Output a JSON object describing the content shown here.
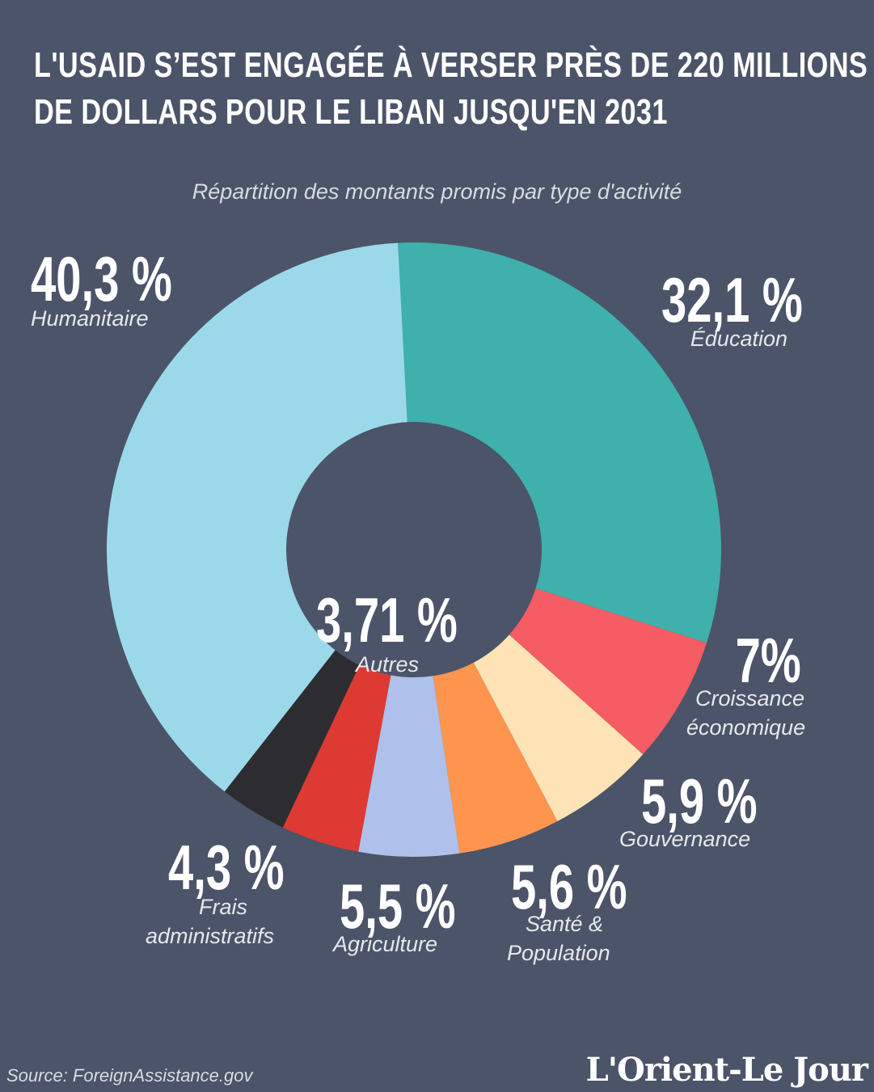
{
  "header": {
    "title_line1": "L'USAID S’EST ENGAGÉE À VERSER PRÈS DE 220 MILLIONS",
    "title_line2": "DE DOLLARS POUR LE LIBAN JUSQU'EN 2031",
    "subtitle": "Répartition des montants promis par type d'activité"
  },
  "chart_data": {
    "type": "pie",
    "donut": true,
    "slices": [
      {
        "label": "Éducation",
        "pct_label": "32,1 %",
        "value": 32.1,
        "color": "#3fb0ac"
      },
      {
        "label": "Croissance économique",
        "pct_label": "7%",
        "value": 7.0,
        "color": "#f55c63"
      },
      {
        "label": "Gouvernance",
        "pct_label": "5,9 %",
        "value": 5.9,
        "color": "#fde3b6"
      },
      {
        "label": "Santé & Population",
        "pct_label": "5,6 %",
        "value": 5.6,
        "color": "#fd954f"
      },
      {
        "label": "Agriculture",
        "pct_label": "5,5 %",
        "value": 5.5,
        "color": "#afc0ea"
      },
      {
        "label": "Frais administratifs",
        "pct_label": "4,3 %",
        "value": 4.3,
        "color": "#dd3a33"
      },
      {
        "label": "Autres",
        "pct_label": "3,71 %",
        "value": 3.71,
        "color": "#2d2d31"
      },
      {
        "label": "Humanitaire",
        "pct_label": "40,3 %",
        "value": 40.3,
        "color": "#9bd9ea"
      }
    ]
  },
  "labels": {
    "humanitaire": {
      "pct": "40,3 %",
      "text": "Humanitaire"
    },
    "education": {
      "pct": "32,1 %",
      "text": "Éducation"
    },
    "croissance": {
      "pct": "7%",
      "text1": "Croissance",
      "text2": "économique"
    },
    "gouvernance": {
      "pct": "5,9 %",
      "text": "Gouvernance"
    },
    "sante": {
      "pct": "5,6 %",
      "text1": "Santé &",
      "text2": "Population"
    },
    "agriculture": {
      "pct": "5,5 %",
      "text": "Agriculture"
    },
    "frais": {
      "pct": "4,3 %",
      "text1": "Frais",
      "text2": "administratifs"
    },
    "autres": {
      "pct": "3,71 %",
      "text": "Autres"
    }
  },
  "footer": {
    "source": "Source: ForeignAssistance.gov",
    "logo": "L'Orient-Le Jour"
  }
}
